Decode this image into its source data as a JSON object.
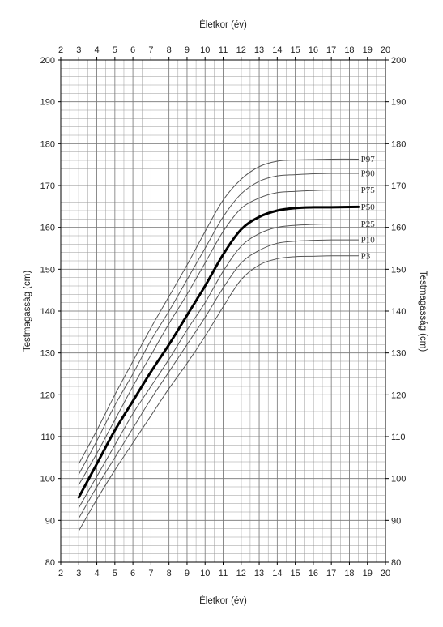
{
  "chart_data": {
    "type": "line",
    "title": "",
    "xlabel": "Életkor (év)",
    "ylabel": "Testmagasság (cm)",
    "xlim": [
      2,
      20
    ],
    "ylim": [
      80,
      200
    ],
    "xticks": [
      2,
      3,
      4,
      5,
      6,
      7,
      8,
      9,
      10,
      11,
      12,
      13,
      14,
      15,
      16,
      17,
      18,
      19,
      20
    ],
    "yticks": [
      80,
      90,
      100,
      110,
      120,
      130,
      140,
      150,
      160,
      170,
      180,
      190,
      200
    ],
    "grid": true,
    "minor_grid": {
      "x_step": 0.5,
      "y_step": 2
    },
    "x": [
      3,
      4,
      5,
      6,
      7,
      8,
      9,
      10,
      11,
      12,
      13,
      14,
      15,
      16,
      17,
      18.5
    ],
    "series": [
      {
        "name": "P97",
        "values": [
          103.5,
          111.5,
          120,
          128,
          136,
          143.5,
          151,
          159,
          166.5,
          171.5,
          174.5,
          175.8,
          176.1,
          176.2,
          176.3,
          176.3
        ]
      },
      {
        "name": "P90",
        "values": [
          101,
          109,
          117.5,
          125,
          133,
          140,
          147.5,
          155,
          162.5,
          168,
          171,
          172.3,
          172.6,
          172.8,
          172.9,
          172.9
        ]
      },
      {
        "name": "P75",
        "values": [
          98.5,
          106,
          114,
          122,
          129.5,
          137,
          144,
          151.5,
          159,
          164.5,
          167,
          168.3,
          168.6,
          168.8,
          168.9,
          168.9
        ]
      },
      {
        "name": "P50",
        "values": [
          95.5,
          103.5,
          111.5,
          118.5,
          125.5,
          132,
          139,
          146,
          153.5,
          159.5,
          162.5,
          164,
          164.6,
          164.8,
          164.8,
          164.9
        ]
      },
      {
        "name": "P25",
        "values": [
          93,
          100.5,
          108,
          115.5,
          122,
          128.5,
          135.5,
          142,
          149.5,
          155.5,
          158.5,
          160,
          160.5,
          160.7,
          160.8,
          160.8
        ]
      },
      {
        "name": "P10",
        "values": [
          90.5,
          98,
          105,
          112,
          119,
          125.5,
          132,
          138.5,
          145.5,
          151.5,
          154.5,
          156.2,
          156.7,
          156.9,
          157,
          157
        ]
      },
      {
        "name": "P3",
        "values": [
          87.5,
          95,
          102,
          108.5,
          115,
          121.5,
          127.5,
          134,
          141,
          147.5,
          151,
          152.5,
          153,
          153.1,
          153.2,
          153.2
        ]
      }
    ],
    "emphasized_series": "P50",
    "colors": {
      "lines": "#555555",
      "emphasis": "#000000",
      "grid": "#9a9a9a",
      "frame": "#000000"
    }
  }
}
